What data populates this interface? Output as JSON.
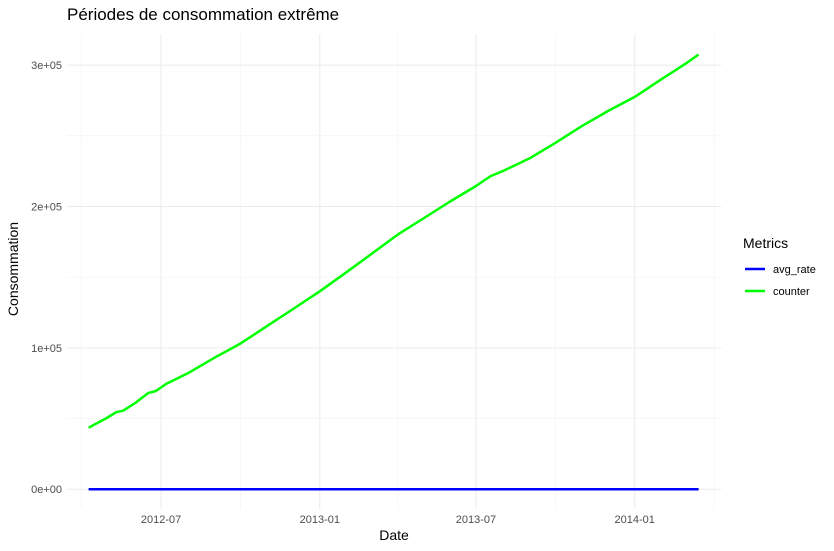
{
  "chart_data": {
    "type": "line",
    "title": "Périodes de consommation extrême",
    "xlabel": "Date",
    "ylabel": "Consommation",
    "x_ticks": [
      {
        "date": "2012-07-01",
        "label": "2012-07"
      },
      {
        "date": "2013-01-01",
        "label": "2013-01"
      },
      {
        "date": "2013-07-01",
        "label": "2013-07"
      },
      {
        "date": "2014-01-01",
        "label": "2014-01"
      }
    ],
    "y_ticks": [
      {
        "value": 0,
        "label": "0e+00"
      },
      {
        "value": 100000,
        "label": "1e+05"
      },
      {
        "value": 200000,
        "label": "2e+05"
      },
      {
        "value": 300000,
        "label": "3e+05"
      }
    ],
    "xlim": [
      "2012-03-14",
      "2014-04-11"
    ],
    "ylim": [
      -14000,
      322000
    ],
    "grid": true,
    "legend": {
      "title": "Metrics",
      "position": "right"
    },
    "series": [
      {
        "name": "avg_rate",
        "color": "#0000ff",
        "points": [
          {
            "x": "2012-04-08",
            "y": 0
          },
          {
            "x": "2014-03-16",
            "y": 0
          }
        ]
      },
      {
        "name": "counter",
        "color": "#00ff00",
        "points": [
          {
            "x": "2012-04-08",
            "y": 43500
          },
          {
            "x": "2012-04-28",
            "y": 50000
          },
          {
            "x": "2012-05-10",
            "y": 54500
          },
          {
            "x": "2012-05-18",
            "y": 55500
          },
          {
            "x": "2012-06-01",
            "y": 61000
          },
          {
            "x": "2012-06-16",
            "y": 68000
          },
          {
            "x": "2012-06-25",
            "y": 69500
          },
          {
            "x": "2012-07-07",
            "y": 74500
          },
          {
            "x": "2012-08-01",
            "y": 82000
          },
          {
            "x": "2012-09-01",
            "y": 93000
          },
          {
            "x": "2012-10-01",
            "y": 103000
          },
          {
            "x": "2012-11-01",
            "y": 115500
          },
          {
            "x": "2012-12-01",
            "y": 127500
          },
          {
            "x": "2013-01-01",
            "y": 140000
          },
          {
            "x": "2013-02-01",
            "y": 153500
          },
          {
            "x": "2013-03-01",
            "y": 166000
          },
          {
            "x": "2013-04-01",
            "y": 180000
          },
          {
            "x": "2013-05-01",
            "y": 191500
          },
          {
            "x": "2013-06-01",
            "y": 203500
          },
          {
            "x": "2013-07-01",
            "y": 214500
          },
          {
            "x": "2013-07-18",
            "y": 221500
          },
          {
            "x": "2013-08-01",
            "y": 225000
          },
          {
            "x": "2013-09-01",
            "y": 234000
          },
          {
            "x": "2013-10-01",
            "y": 245000
          },
          {
            "x": "2013-11-01",
            "y": 257000
          },
          {
            "x": "2013-12-01",
            "y": 267500
          },
          {
            "x": "2014-01-01",
            "y": 277500
          },
          {
            "x": "2014-02-01",
            "y": 290000
          },
          {
            "x": "2014-03-01",
            "y": 301000
          },
          {
            "x": "2014-03-16",
            "y": 307500
          }
        ]
      }
    ]
  }
}
